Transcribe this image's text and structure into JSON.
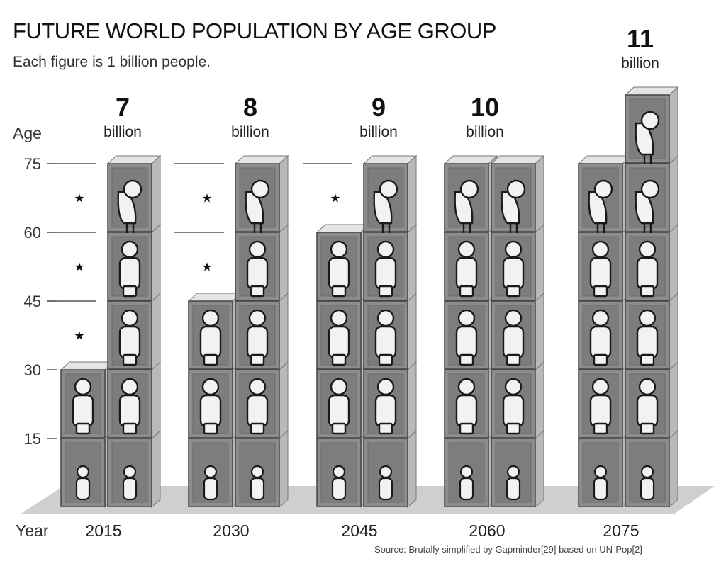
{
  "title": "FUTURE WORLD POPULATION BY AGE GROUP",
  "subtitle": "Each figure is 1 billion people.",
  "source": "Source: Brutally simplified by Gapminder[29] based on UN-Pop[2]",
  "axes": {
    "y_label": "Age",
    "x_label": "Year",
    "y_ticks": [
      "15",
      "30",
      "45",
      "60",
      "75"
    ]
  },
  "marker_symbol": "★",
  "colors": {
    "box_front": "#8c8c8c",
    "box_side": "#b9b9b9",
    "box_top": "#e4e4e4",
    "floor": "#cfcfcf",
    "figure": "#f2f2f2",
    "outline": "#1a1a1a"
  },
  "chart_data": {
    "type": "bar",
    "unit_label": "billion",
    "categories": [
      "2015",
      "2030",
      "2045",
      "2060",
      "2075"
    ],
    "totals": [
      "7",
      "8",
      "9",
      "10",
      "11"
    ],
    "age_bands": [
      "0-15",
      "15-30",
      "30-45",
      "45-60",
      "60-75",
      "75+"
    ],
    "columns": [
      {
        "year": "2015",
        "stacks": [
          2,
          5
        ]
      },
      {
        "year": "2030",
        "stacks": [
          3,
          5
        ]
      },
      {
        "year": "2045",
        "stacks": [
          4,
          5
        ]
      },
      {
        "year": "2060",
        "stacks": [
          5,
          5
        ]
      },
      {
        "year": "2075",
        "stacks": [
          5,
          6
        ]
      }
    ],
    "missing_markers": [
      {
        "year": "2015",
        "bands": [
          2,
          3,
          4
        ]
      },
      {
        "year": "2030",
        "bands": [
          3,
          4
        ]
      },
      {
        "year": "2045",
        "bands": [
          4
        ]
      }
    ]
  }
}
